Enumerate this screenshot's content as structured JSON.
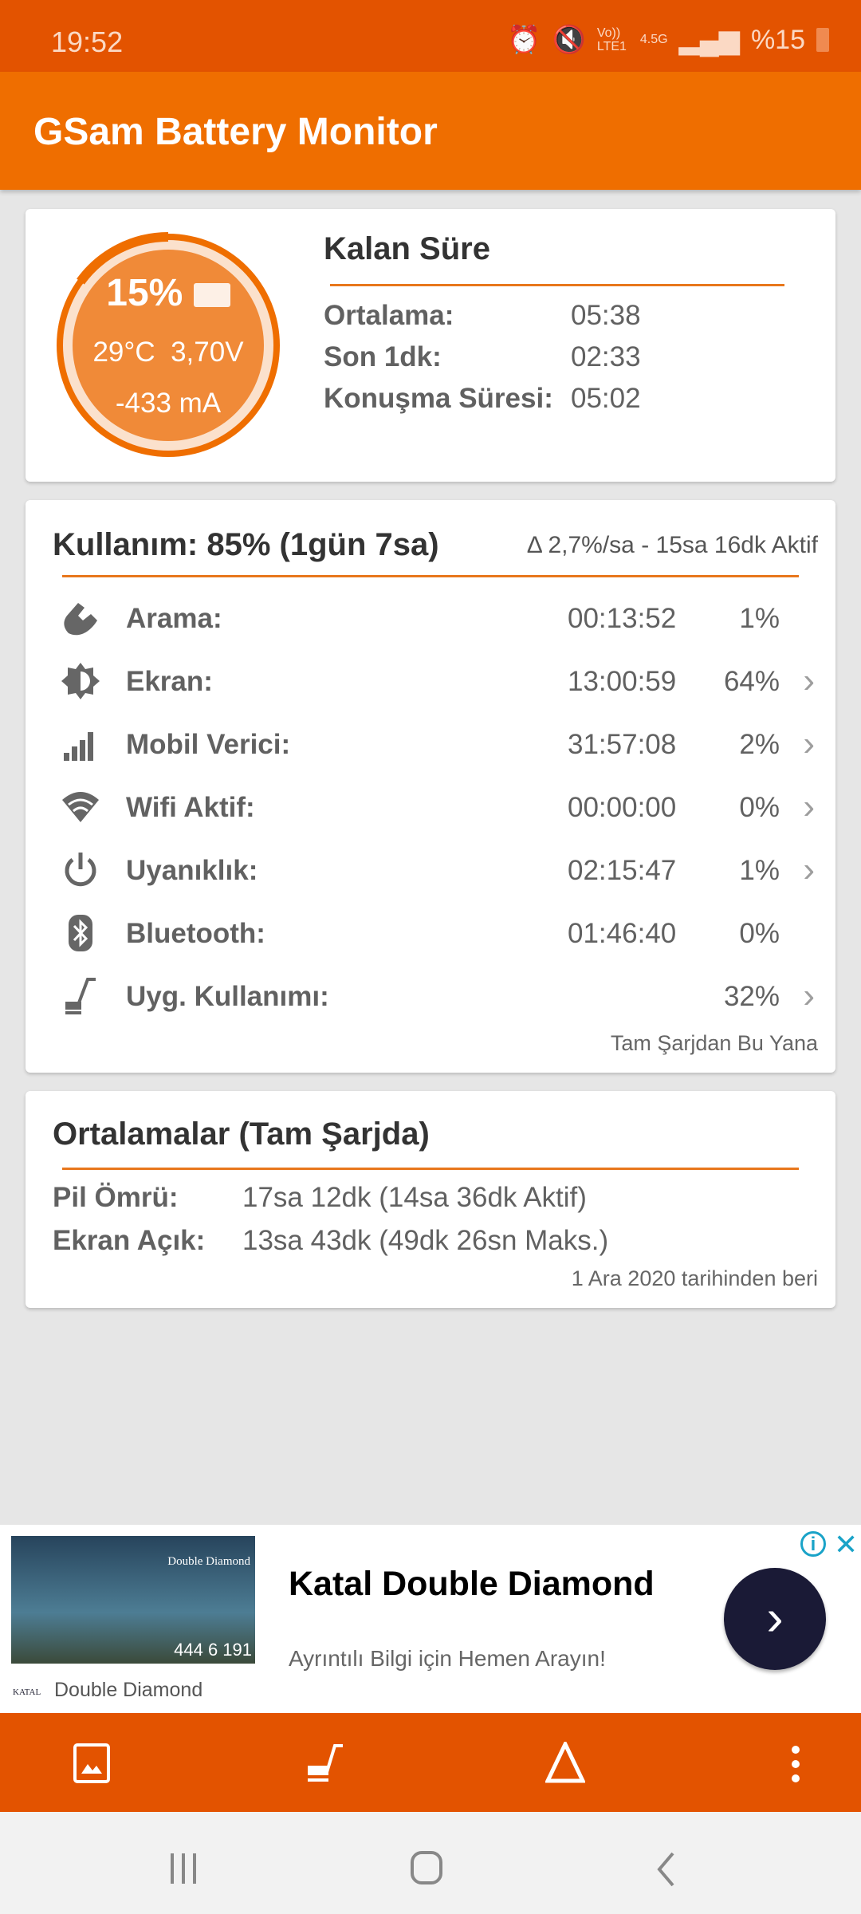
{
  "status_bar": {
    "time": "19:52",
    "battery_text": "%15",
    "network": "4.5G",
    "volte": "Vo)) LTE1"
  },
  "app": {
    "title": "GSam Battery Monitor",
    "accent": "#ef6e00"
  },
  "battery_card": {
    "percent": "15%",
    "level": 15,
    "temperature": "29°C",
    "voltage": "3,70V",
    "current": "-433 mA",
    "title": "Kalan Süre",
    "rows": [
      {
        "label": "Ortalama:",
        "value": "05:38"
      },
      {
        "label": "Son 1dk:",
        "value": "02:33"
      },
      {
        "label": "Konuşma Süresi:",
        "value": "05:02"
      }
    ]
  },
  "usage_card": {
    "title": "Kullanım: 85% (1gün 7sa)",
    "rate": "Δ 2,7%/sa - 15sa 16dk Aktif",
    "rows": [
      {
        "icon": "phone-icon",
        "label": "Arama:",
        "time": "00:13:52",
        "percent": "1%",
        "chevron": false
      },
      {
        "icon": "brightness-icon",
        "label": "Ekran:",
        "time": "13:00:59",
        "percent": "64%",
        "chevron": true
      },
      {
        "icon": "signal-icon",
        "label": "Mobil Verici:",
        "time": "31:57:08",
        "percent": "2%",
        "chevron": true
      },
      {
        "icon": "wifi-icon",
        "label": "Wifi Aktif:",
        "time": "00:00:00",
        "percent": "0%",
        "chevron": true
      },
      {
        "icon": "power-icon",
        "label": "Uyanıklık:",
        "time": "02:15:47",
        "percent": "1%",
        "chevron": true
      },
      {
        "icon": "bluetooth-icon",
        "label": "Bluetooth:",
        "time": "01:46:40",
        "percent": "0%",
        "chevron": false
      },
      {
        "icon": "broom-icon",
        "label": "Uyg. Kullanımı:",
        "time": "",
        "percent": "32%",
        "chevron": true
      }
    ],
    "footnote": "Tam Şarjdan Bu Yana"
  },
  "averages_card": {
    "title": "Ortalamalar (Tam Şarjda)",
    "rows": [
      {
        "label": "Pil Ömrü:",
        "value": "17sa 12dk (14sa 36dk Aktif)"
      },
      {
        "label": "Ekran Açık:",
        "value": "13sa 43dk (49dk 26sn Maks.)"
      }
    ],
    "footnote": "1 Ara 2020 tarihinden beri"
  },
  "ad": {
    "title": "Katal Double Diamond",
    "subtitle": "Ayrıntılı Bilgi için Hemen Arayın!",
    "advertiser": "Double Diamond",
    "logo_text": "KATAL",
    "image_brand": "Double Diamond",
    "image_phone": "444 6 191"
  }
}
